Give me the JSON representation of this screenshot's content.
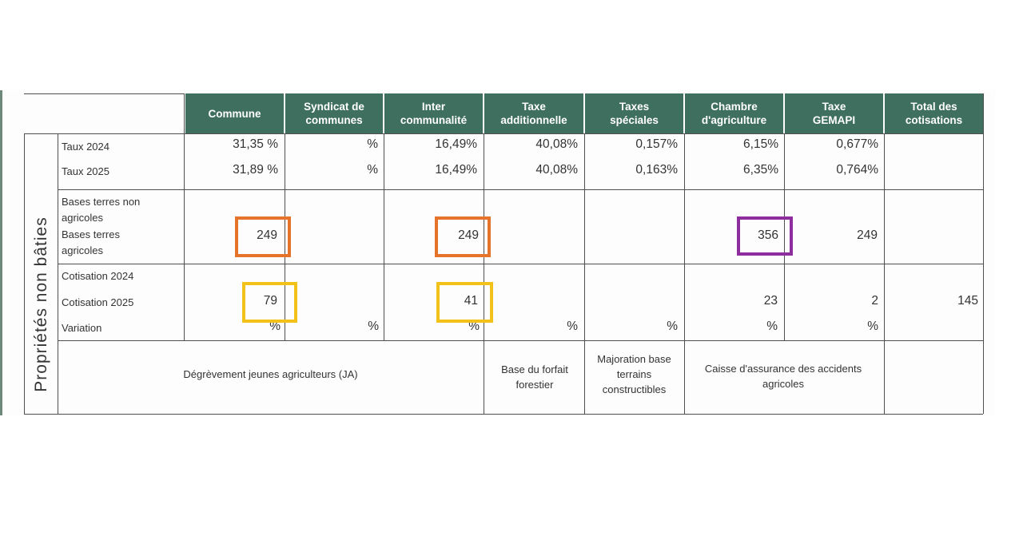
{
  "colors": {
    "header_bg": "#3f6f5f",
    "orange": "#e5742a",
    "yellow": "#f2c21b",
    "purple": "#8e2d9e"
  },
  "side_label": "Propriétés non bâties",
  "headers": [
    "Commune",
    "Syndicat de communes",
    "Inter communalité",
    "Taxe additionnelle",
    "Taxes spéciales",
    "Chambre d'agriculture",
    "Taxe GEMAPI",
    "Total des cotisations"
  ],
  "row_labels": {
    "taux_2024": "Taux 2024",
    "taux_2025": "Taux 2025",
    "bases_non_agricoles": "Bases terres non agricoles",
    "bases_agricoles": "Bases terres agricoles",
    "cotisation_2024": "Cotisation 2024",
    "cotisation_2025": "Cotisation 2025",
    "variation": "Variation"
  },
  "taux_2024": [
    "31,35 %",
    "%",
    "16,49%",
    "40,08%",
    "0,157%",
    "6,15%",
    "0,677%"
  ],
  "taux_2025": [
    "31,89 %",
    "%",
    "16,49%",
    "40,08%",
    "0,163%",
    "6,35%",
    "0,764%"
  ],
  "bases": {
    "commune": "249",
    "inter": "249",
    "chambre": "356",
    "gemapi": "249"
  },
  "cotisation_2025": {
    "commune": "79",
    "inter": "41",
    "chambre": "23",
    "gemapi": "2",
    "total": "145"
  },
  "variation": [
    "%",
    "%",
    "%",
    "%",
    "%",
    "%",
    "%"
  ],
  "footer": {
    "ja": "Dégrèvement jeunes agriculteurs (JA)",
    "forfait": "Base du forfait forestier",
    "majoration": "Majoration base terrains constructibles",
    "caisse": "Caisse d'assurance des accidents agricoles"
  }
}
